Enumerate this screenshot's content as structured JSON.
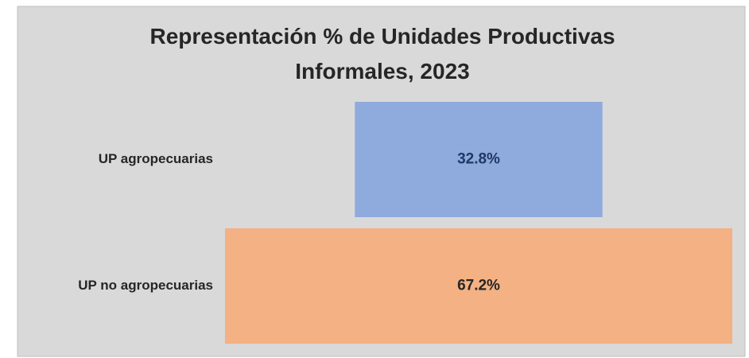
{
  "chart_data": {
    "type": "funnel",
    "title": "Representación % de Unidades Productivas Informales, 2023",
    "categories": [
      "UP agropecuarias",
      "UP no agropecuarias"
    ],
    "values": [
      32.8,
      67.2
    ],
    "value_labels": [
      "32.8%",
      "67.2%"
    ],
    "colors": [
      "#8faadc",
      "#f4b183"
    ],
    "label_colors": [
      "#1f3864",
      "#262626"
    ]
  }
}
